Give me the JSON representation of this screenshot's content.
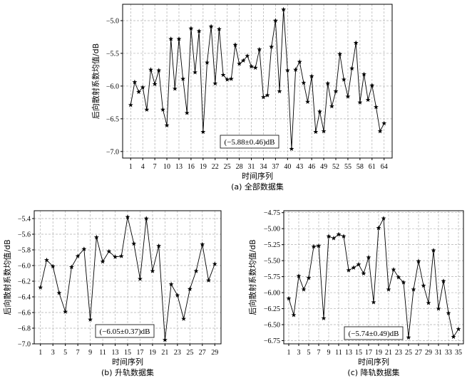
{
  "chart_data": [
    {
      "id": "a",
      "type": "line",
      "caption": "(a) 全部数据集",
      "xlabel": "时间序列",
      "ylabel": "后向散射系数均值/dB",
      "annotation": "(−5.88±0.46)dB",
      "xlim": [
        -1,
        66
      ],
      "ylim": [
        -7.1,
        -4.75
      ],
      "xticks": [
        1,
        4,
        7,
        10,
        13,
        16,
        19,
        22,
        25,
        28,
        31,
        34,
        37,
        40,
        43,
        46,
        49,
        52,
        55,
        58,
        61,
        64
      ],
      "yticks": [
        -7.0,
        -6.5,
        -6.0,
        -5.5,
        -5.0
      ],
      "ytick_labels": [
        "−7.0",
        "−6.5",
        "−6.0",
        "−5.5",
        "−5.0"
      ],
      "grid": true,
      "marker": "star",
      "x": [
        1,
        2,
        3,
        4,
        5,
        6,
        7,
        8,
        9,
        10,
        11,
        12,
        13,
        14,
        15,
        16,
        17,
        18,
        19,
        20,
        21,
        22,
        23,
        24,
        25,
        26,
        27,
        28,
        29,
        30,
        31,
        32,
        33,
        34,
        35,
        36,
        37,
        38,
        39,
        40,
        41,
        42,
        43,
        44,
        45,
        46,
        47,
        48,
        49,
        50,
        51,
        52,
        53,
        54,
        55,
        56,
        57,
        58,
        59,
        60,
        61,
        62,
        63,
        64
      ],
      "values": [
        -6.29,
        -5.94,
        -6.09,
        -6.02,
        -6.36,
        -5.75,
        -5.97,
        -5.76,
        -6.36,
        -6.6,
        -5.28,
        -6.04,
        -5.28,
        -5.89,
        -6.41,
        -5.12,
        -5.79,
        -5.16,
        -6.7,
        -5.64,
        -5.09,
        -5.96,
        -5.13,
        -5.83,
        -5.9,
        -5.89,
        -5.37,
        -5.66,
        -5.61,
        -5.54,
        -5.7,
        -5.72,
        -5.44,
        -6.17,
        -6.14,
        -5.4,
        -5.0,
        -6.08,
        -4.83,
        -5.76,
        -6.96,
        -5.75,
        -5.63,
        -5.95,
        -6.24,
        -5.85,
        -6.7,
        -6.39,
        -6.69,
        -5.96,
        -6.31,
        -6.08,
        -5.51,
        -5.9,
        -6.16,
        -5.73,
        -5.34,
        -6.25,
        -5.82,
        -6.21,
        -5.99,
        -6.32,
        -6.69,
        -6.57
      ]
    },
    {
      "id": "b",
      "type": "line",
      "caption": "(b) 升轨数据集",
      "xlabel": "时间序列",
      "ylabel": "后向散射系数均值/dB",
      "annotation": "(−6.05±0.37)dB",
      "xlim": [
        0,
        30
      ],
      "ylim": [
        -7.0,
        -5.3
      ],
      "xticks": [
        1,
        3,
        5,
        7,
        9,
        11,
        13,
        15,
        17,
        19,
        21,
        23,
        25,
        27,
        29
      ],
      "yticks": [
        -7.0,
        -6.8,
        -6.6,
        -6.4,
        -6.2,
        -6.0,
        -5.8,
        -5.6,
        -5.4
      ],
      "ytick_labels": [
        "−7.0",
        "−6.8",
        "−6.6",
        "−6.4",
        "−6.2",
        "−6.0",
        "−5.8",
        "−5.6",
        "−5.4"
      ],
      "grid": true,
      "marker": "star",
      "x": [
        1,
        2,
        3,
        4,
        5,
        6,
        7,
        8,
        9,
        10,
        11,
        12,
        13,
        14,
        15,
        16,
        17,
        18,
        19,
        20,
        21,
        22,
        23,
        24,
        25,
        26,
        27,
        28,
        29
      ],
      "values": [
        -6.28,
        -5.93,
        -6.01,
        -6.35,
        -6.59,
        -6.02,
        -5.88,
        -5.79,
        -6.69,
        -5.64,
        -5.95,
        -5.82,
        -5.89,
        -5.88,
        -5.38,
        -5.72,
        -6.17,
        -5.4,
        -6.07,
        -5.75,
        -6.95,
        -6.24,
        -6.38,
        -6.68,
        -6.3,
        -6.07,
        -5.73,
        -6.19,
        -5.98
      ]
    },
    {
      "id": "c",
      "type": "line",
      "caption": "(c) 降轨数据集",
      "xlabel": "时间序列",
      "ylabel": "后向散射系数均值/dB",
      "annotation": "(−5.74±0.49)dB",
      "xlim": [
        0,
        36
      ],
      "ylim": [
        -6.8,
        -4.72
      ],
      "xticks": [
        1,
        3,
        5,
        7,
        9,
        11,
        13,
        15,
        17,
        19,
        21,
        23,
        25,
        27,
        29,
        31,
        33,
        35
      ],
      "yticks": [
        -6.75,
        -6.5,
        -6.25,
        -6.0,
        -5.75,
        -5.5,
        -5.25,
        -5.0,
        -4.75
      ],
      "ytick_labels": [
        "−6.75",
        "−6.50",
        "−6.25",
        "−6.00",
        "−5.75",
        "−5.50",
        "−5.25",
        "−5.00",
        "−4.75"
      ],
      "grid": true,
      "marker": "star",
      "x": [
        1,
        2,
        3,
        4,
        5,
        6,
        7,
        8,
        9,
        10,
        11,
        12,
        13,
        14,
        15,
        16,
        17,
        18,
        19,
        20,
        21,
        22,
        23,
        24,
        25,
        26,
        27,
        28,
        29,
        30,
        31,
        32,
        33,
        34,
        35
      ],
      "values": [
        -6.09,
        -6.35,
        -5.74,
        -5.95,
        -5.77,
        -5.28,
        -5.27,
        -6.4,
        -5.12,
        -5.15,
        -5.09,
        -5.12,
        -5.65,
        -5.61,
        -5.56,
        -5.7,
        -5.45,
        -6.15,
        -4.99,
        -4.84,
        -5.95,
        -5.64,
        -5.76,
        -5.84,
        -6.7,
        -5.95,
        -5.51,
        -5.89,
        -6.16,
        -5.34,
        -6.25,
        -5.82,
        -6.32,
        -6.69,
        -6.57
      ]
    }
  ]
}
